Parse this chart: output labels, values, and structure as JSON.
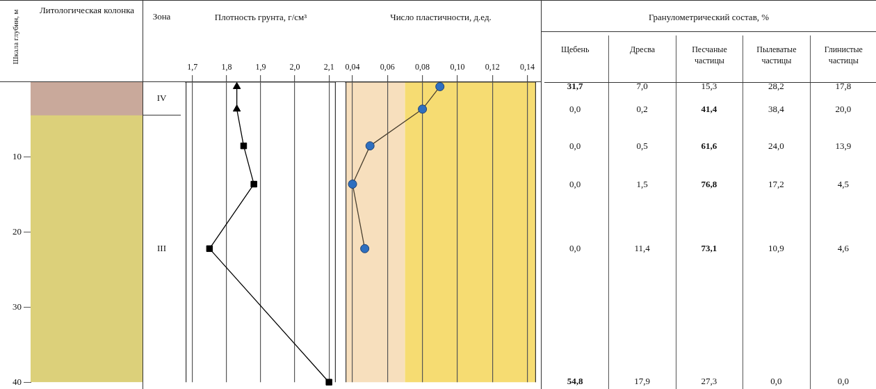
{
  "chart_data": [
    {
      "type": "bar",
      "stacked": true,
      "title": "Литологическая колонка",
      "ylabel": "Шкала глубин, м",
      "categories": [
        null
      ],
      "series": [
        {
          "color": "#c9a99b",
          "values": [
            4.4
          ]
        },
        {
          "color": "#dcd07a",
          "values": [
            35.6
          ]
        }
      ],
      "ylim": [
        40,
        0
      ],
      "yticks": [
        10,
        20,
        30,
        40
      ],
      "tick_labels": "y",
      "annotations": [
        "Зона",
        "IV",
        "III"
      ]
    },
    {
      "type": "line",
      "title": "Плотность грунта, г/см³",
      "xlim": [
        1.68,
        2.12
      ],
      "xticks": [
        {
          "value": 1.7,
          "label": "1,7"
        },
        {
          "value": 1.8,
          "label": "1,8"
        },
        {
          "value": 1.9,
          "label": "1,9"
        },
        {
          "value": 2.0,
          "label": "2,0"
        },
        {
          "value": 2.1,
          "label": "2,1"
        }
      ],
      "ylim": [
        40,
        0
      ],
      "tick_labels": "x",
      "grid": "x",
      "series": [
        {
          "type": "line",
          "color": "#000000",
          "marker": "none",
          "x": [
            1.83,
            1.83,
            1.85,
            1.88,
            1.75,
            2.1
          ],
          "values": [
            0.6,
            3.6,
            8.5,
            13.6,
            22.2,
            40
          ]
        },
        {
          "type": "scatter",
          "color": "#000000",
          "marker": "triangle",
          "x": [
            1.83,
            1.83
          ],
          "values": [
            0.6,
            3.6
          ]
        },
        {
          "type": "scatter",
          "color": "#000000",
          "marker": "square",
          "x": [
            1.85,
            1.88,
            1.75,
            2.1
          ],
          "values": [
            8.5,
            13.6,
            22.2,
            40
          ]
        }
      ]
    },
    {
      "type": "line",
      "title": "Число пластичности, д.ед.",
      "xlim": [
        0.036,
        0.145
      ],
      "xticks": [
        {
          "value": 0.04,
          "label": "0,04"
        },
        {
          "value": 0.06,
          "label": "0,06"
        },
        {
          "value": 0.08,
          "label": "0,08"
        },
        {
          "value": 0.1,
          "label": "0,10"
        },
        {
          "value": 0.12,
          "label": "0,12"
        },
        {
          "value": 0.14,
          "label": "0,14"
        }
      ],
      "ylim": [
        40,
        0
      ],
      "tick_labels": "x",
      "grid": "x",
      "bands": [
        {
          "axis": "x",
          "from": 0.036,
          "to": 0.07,
          "color": "#f7dfbd"
        },
        {
          "axis": "x",
          "from": 0.07,
          "to": 0.145,
          "color": "#f6dc72"
        }
      ],
      "series": [
        {
          "type": "line",
          "color": "#2e6fc0",
          "marker": "circle",
          "x": [
            0.09,
            0.08,
            0.05,
            0.04,
            0.047
          ],
          "values": [
            0.6,
            3.6,
            8.5,
            13.6,
            22.2
          ]
        }
      ]
    },
    {
      "type": "other",
      "title": "Гранулометрический состав, %",
      "categories": [
        "Щебень",
        "Дресва",
        "Песчаные частицы",
        "Пылеватые частицы",
        "Глинистые частицы"
      ],
      "series": [
        {
          "values": [
            31.7,
            7.0,
            15.3,
            28.2,
            17.8
          ],
          "value_labels": [
            "31,7",
            "7,0",
            "15,3",
            "28,2",
            "17,8"
          ]
        },
        {
          "values": [
            0.0,
            0.2,
            41.4,
            38.4,
            20.0
          ],
          "value_labels": [
            "0,0",
            "0,2",
            "41,4",
            "38,4",
            "20,0"
          ]
        },
        {
          "values": [
            0.0,
            0.5,
            61.6,
            24.0,
            13.9
          ],
          "value_labels": [
            "0,0",
            "0,5",
            "61,6",
            "24,0",
            "13,9"
          ]
        },
        {
          "values": [
            0.0,
            1.5,
            76.8,
            17.2,
            4.5
          ],
          "value_labels": [
            "0,0",
            "1,5",
            "76,8",
            "17,2",
            "4,5"
          ]
        },
        {
          "values": [
            0.0,
            11.4,
            73.1,
            10.9,
            4.6
          ],
          "value_labels": [
            "0,0",
            "11,4",
            "73,1",
            "10,9",
            "4,6"
          ]
        },
        {
          "values": [
            54.8,
            17.9,
            27.3,
            0.0,
            0.0
          ],
          "value_labels": [
            "54,8",
            "17,9",
            "27,3",
            "0,0",
            "0,0"
          ]
        }
      ]
    }
  ]
}
